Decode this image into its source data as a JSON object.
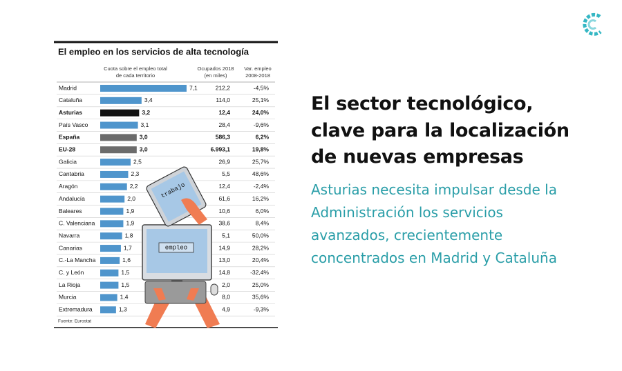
{
  "infographic": {
    "title": "El empleo en los servicios de alta tecnología",
    "headers": {
      "share": [
        "Cuota sobre el empleo total",
        "de cada territorio"
      ],
      "employed": [
        "Ocupados 2018",
        "(en miles)"
      ],
      "change": [
        "Var. empleo",
        "2008-2018"
      ]
    },
    "regions": [
      "Madrid",
      "Cataluña",
      "Asturias",
      "País Vasco",
      "España",
      "EU-28",
      "Galicia",
      "Cantabria",
      "Aragón",
      "Andalucía",
      "Baleares",
      "C. Valenciana",
      "Navarra",
      "Canarias",
      "C.-La Mancha",
      "C. y León",
      "La Rioja",
      "Murcia",
      "Extremadura"
    ],
    "shares": [
      7.1,
      3.4,
      3.2,
      3.1,
      3.0,
      3.0,
      2.5,
      2.3,
      2.2,
      2.0,
      1.9,
      1.9,
      1.8,
      1.7,
      1.6,
      1.5,
      1.5,
      1.4,
      1.3
    ],
    "share_labels": [
      "7,1",
      "3,4",
      "3,2",
      "3,1",
      "3,0",
      "3,0",
      "2,5",
      "2,3",
      "2,2",
      "2,0",
      "1,9",
      "1,9",
      "1,8",
      "1,7",
      "1,6",
      "1,5",
      "1,5",
      "1,4",
      "1,3"
    ],
    "employed": [
      "212,2",
      "114,0",
      "12,4",
      "28,4",
      "586,3",
      "6.993,1",
      "26,9",
      "5,5",
      "12,4",
      "61,6",
      "10,6",
      "38,6",
      "5,1",
      "14,9",
      "13,0",
      "14,8",
      "2,0",
      "8,0",
      "4,9"
    ],
    "changes": [
      "-4,5%",
      "25,1%",
      "24,0%",
      "-9,6%",
      "6,2%",
      "19,8%",
      "25,7%",
      "48,6%",
      "-2,4%",
      "16,2%",
      "6,0%",
      "8,4%",
      "50,0%",
      "28,2%",
      "20,4%",
      "-32,4%",
      "25,0%",
      "35,6%",
      "-9,3%"
    ],
    "bar_colors": [
      "#4f95cc",
      "#4f95cc",
      "#111111",
      "#4f95cc",
      "#6b6b6b",
      "#6b6b6b",
      "#4f95cc",
      "#4f95cc",
      "#4f95cc",
      "#4f95cc",
      "#4f95cc",
      "#4f95cc",
      "#4f95cc",
      "#4f95cc",
      "#4f95cc",
      "#4f95cc",
      "#4f95cc",
      "#4f95cc",
      "#4f95cc"
    ],
    "bold_rows": [
      2,
      4,
      5
    ],
    "source": "Fuente: Eurostat",
    "illustration": {
      "screen_text": "empleo",
      "tablet_text": "trabajo"
    }
  },
  "article": {
    "headline": "El sector tecnológico, clave para la localización de nuevas empresas",
    "summary": "Asturias necesita impulsar desde la Administración los servicios avanzados, crecientemente concentrados en Madrid y Cataluña"
  }
}
